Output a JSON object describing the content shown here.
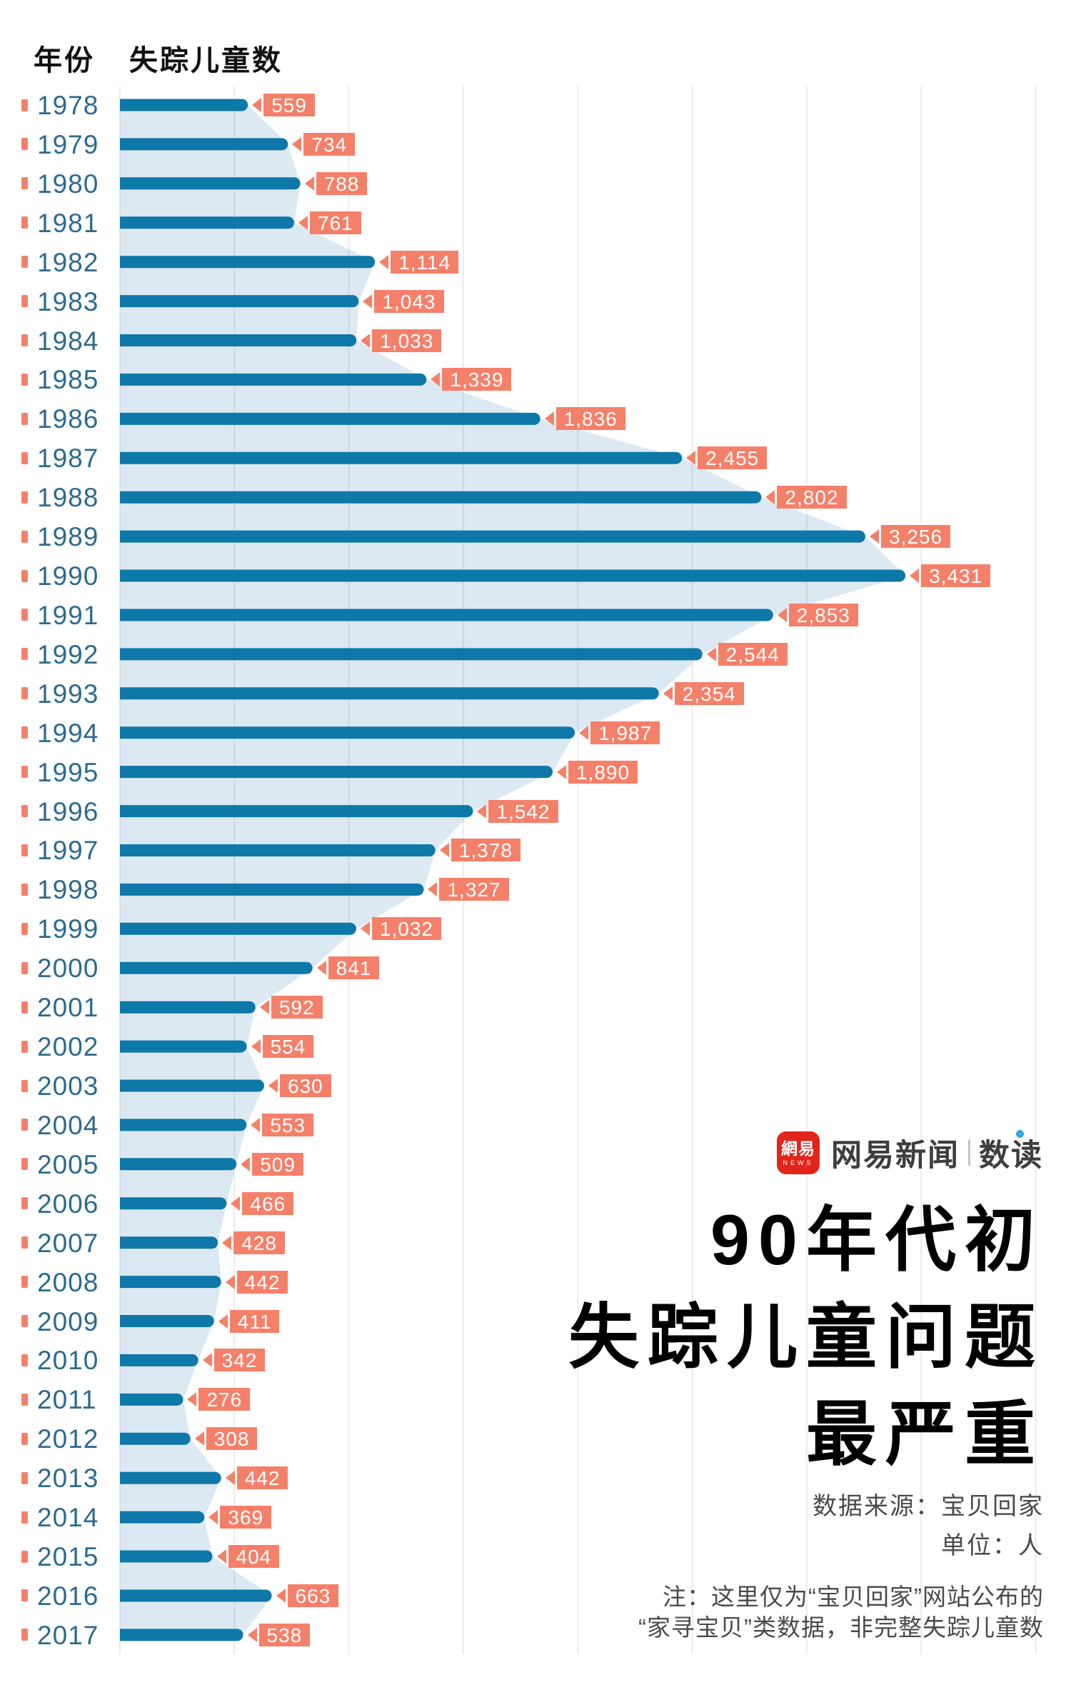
{
  "table_header": {
    "year": "年份",
    "count": "失踪儿童数"
  },
  "chart_data": {
    "type": "bar",
    "orientation": "horizontal",
    "title": "90年代初失踪儿童问题最严重",
    "unit": "人",
    "categories": [
      1978,
      1979,
      1980,
      1981,
      1982,
      1983,
      1984,
      1985,
      1986,
      1987,
      1988,
      1989,
      1990,
      1991,
      1992,
      1993,
      1994,
      1995,
      1996,
      1997,
      1998,
      1999,
      2000,
      2001,
      2002,
      2003,
      2004,
      2005,
      2006,
      2007,
      2008,
      2009,
      2010,
      2011,
      2012,
      2013,
      2014,
      2015,
      2016,
      2017
    ],
    "values": [
      559,
      734,
      788,
      761,
      1114,
      1043,
      1033,
      1339,
      1836,
      2455,
      2802,
      3256,
      3431,
      2853,
      2544,
      2354,
      1987,
      1890,
      1542,
      1378,
      1327,
      1032,
      841,
      592,
      554,
      630,
      553,
      509,
      466,
      428,
      442,
      411,
      342,
      276,
      308,
      442,
      369,
      404,
      663,
      538
    ],
    "xlim": [
      0,
      4000
    ],
    "gridline_interval": 500,
    "grid": "vertical-lines",
    "value_labels": "on-flags",
    "area_silhouette": true
  },
  "logo": {
    "icon_cn": "網易",
    "icon_en": "NEWS",
    "brand": "网易新闻",
    "product": "数读"
  },
  "headline": {
    "line1": "90年代初",
    "line2": "失踪儿童问题",
    "line3": "最严重"
  },
  "source": {
    "data_source": "数据来源：宝贝回家",
    "unit_label": "单位：人"
  },
  "note": {
    "line1": "注：这里仅为“宝贝回家”网站公布的",
    "line2": "“家寻宝贝”类数据，非完整失踪儿童数"
  },
  "colors": {
    "bar": "#0E78A8",
    "area": "#DCE9F3",
    "flag": "#F5806A",
    "year_text": "#2C6A90",
    "gridline_alpha": "rgba(0,0,0,0.08)",
    "netease_red": "#E1251B",
    "product_dot_blue": "#35A8DC",
    "headline_text": "#000000",
    "note_text": "#4A4A4A"
  }
}
